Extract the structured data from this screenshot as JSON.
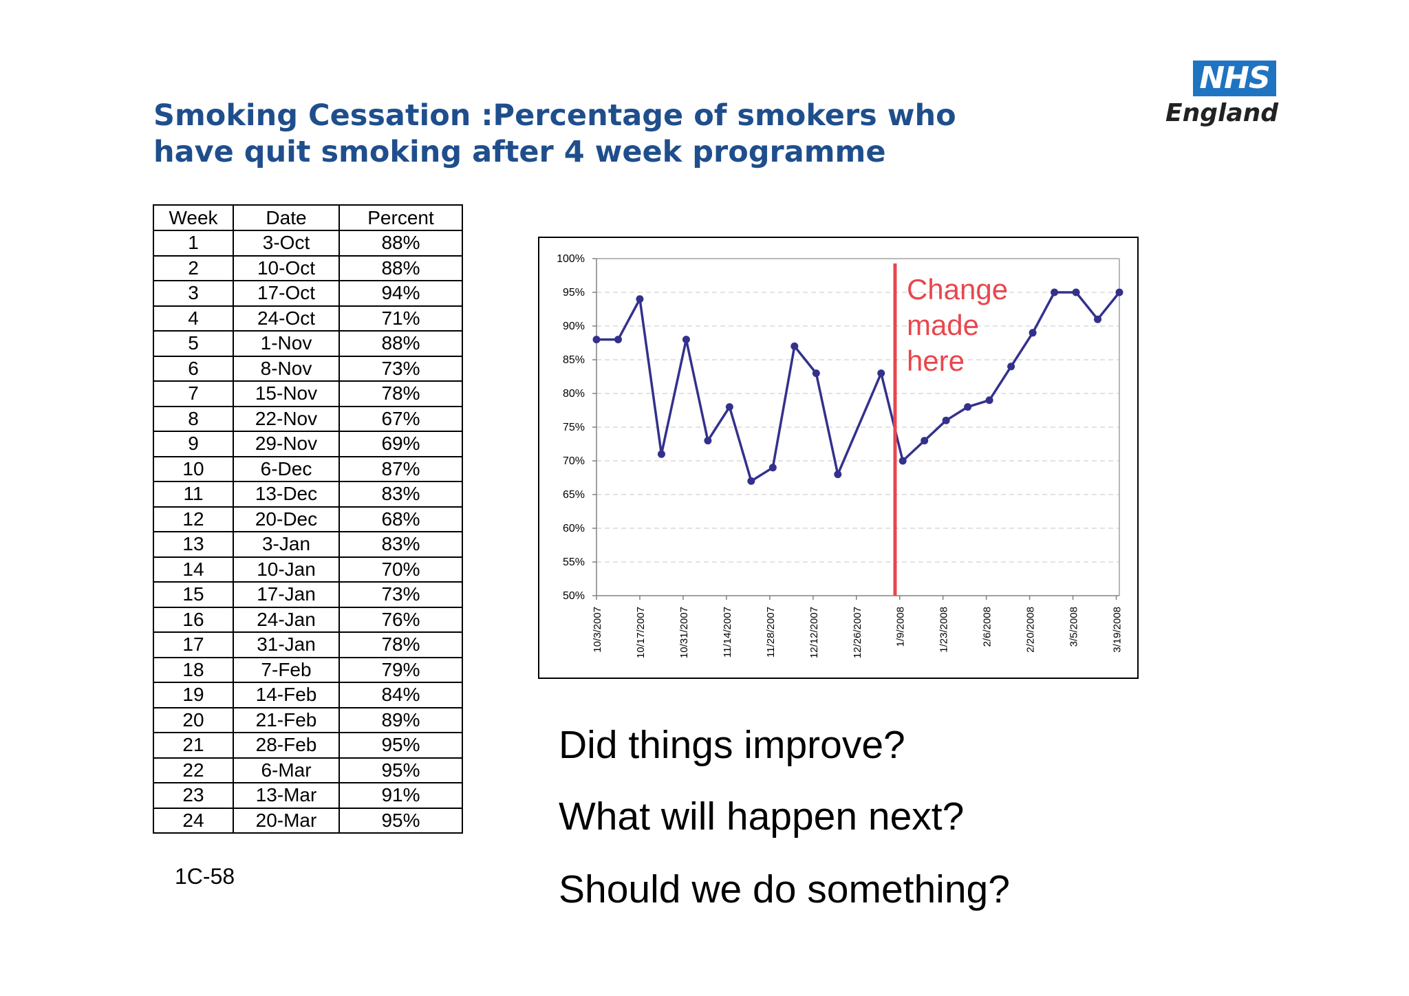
{
  "slide": {
    "title_line1": "Smoking Cessation :Percentage of smokers who",
    "title_line2": "have quit smoking after 4 week programme",
    "slide_ref": "1C-58",
    "questions": [
      "Did things improve?",
      "What will happen next?",
      "Should we do something?"
    ]
  },
  "logo": {
    "nhs": "NHS",
    "england": "England",
    "accent_color": "#1f74c2"
  },
  "table": {
    "headers": [
      "Week",
      "Date",
      "Percent"
    ],
    "rows": [
      [
        "1",
        "3-Oct",
        "88%"
      ],
      [
        "2",
        "10-Oct",
        "88%"
      ],
      [
        "3",
        "17-Oct",
        "94%"
      ],
      [
        "4",
        "24-Oct",
        "71%"
      ],
      [
        "5",
        "1-Nov",
        "88%"
      ],
      [
        "6",
        "8-Nov",
        "73%"
      ],
      [
        "7",
        "15-Nov",
        "78%"
      ],
      [
        "8",
        "22-Nov",
        "67%"
      ],
      [
        "9",
        "29-Nov",
        "69%"
      ],
      [
        "10",
        "6-Dec",
        "87%"
      ],
      [
        "11",
        "13-Dec",
        "83%"
      ],
      [
        "12",
        "20-Dec",
        "68%"
      ],
      [
        "13",
        "3-Jan",
        "83%"
      ],
      [
        "14",
        "10-Jan",
        "70%"
      ],
      [
        "15",
        "17-Jan",
        "73%"
      ],
      [
        "16",
        "24-Jan",
        "76%"
      ],
      [
        "17",
        "31-Jan",
        "78%"
      ],
      [
        "18",
        "7-Feb",
        "79%"
      ],
      [
        "19",
        "14-Feb",
        "84%"
      ],
      [
        "20",
        "21-Feb",
        "89%"
      ],
      [
        "21",
        "28-Feb",
        "95%"
      ],
      [
        "22",
        "6-Mar",
        "95%"
      ],
      [
        "23",
        "13-Mar",
        "91%"
      ],
      [
        "24",
        "20-Mar",
        "95%"
      ]
    ]
  },
  "chart_data": {
    "type": "line",
    "title": "",
    "xlabel": "",
    "ylabel": "",
    "ylim": [
      50,
      100
    ],
    "y_ticks": [
      50,
      55,
      60,
      65,
      70,
      75,
      80,
      85,
      90,
      95,
      100
    ],
    "y_tick_labels": [
      "50%",
      "55%",
      "60%",
      "65%",
      "70%",
      "75%",
      "80%",
      "85%",
      "90%",
      "95%",
      "100%"
    ],
    "x_tick_labels": [
      "10/3/2007",
      "10/17/2007",
      "10/31/2007",
      "11/14/2007",
      "11/28/2007",
      "12/12/2007",
      "12/26/2007",
      "1/9/2008",
      "1/23/2008",
      "2/6/2008",
      "2/20/2008",
      "3/5/2008",
      "3/19/2008"
    ],
    "x_tick_days": [
      0,
      14,
      28,
      42,
      56,
      70,
      84,
      98,
      112,
      126,
      140,
      154,
      168
    ],
    "grid": true,
    "series": [
      {
        "name": "Percent",
        "color": "#33318c",
        "days": [
          0,
          7,
          14,
          21,
          29,
          36,
          43,
          50,
          57,
          64,
          71,
          78,
          92,
          99,
          106,
          113,
          120,
          127,
          134,
          141,
          148,
          155,
          162,
          169
        ],
        "values": [
          88,
          88,
          94,
          71,
          88,
          73,
          78,
          67,
          69,
          87,
          83,
          68,
          83,
          70,
          73,
          76,
          78,
          79,
          84,
          89,
          95,
          95,
          91,
          95
        ]
      }
    ],
    "annotation": {
      "lines": [
        "Change",
        "made",
        "here"
      ],
      "day": 96.5,
      "color": "#e8474e"
    }
  }
}
